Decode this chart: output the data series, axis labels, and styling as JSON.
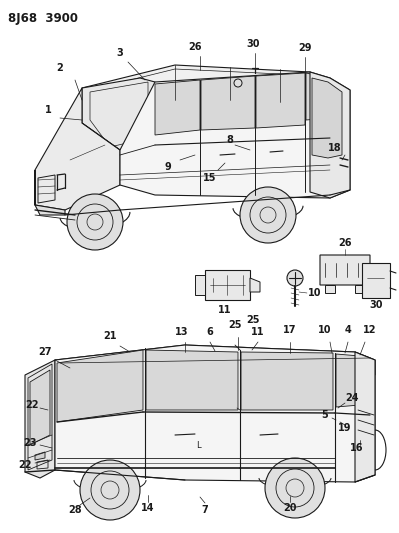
{
  "title": "8J68  3900",
  "bg": "#ffffff",
  "lc": "#1a1a1a",
  "figsize": [
    3.99,
    5.33
  ],
  "dpi": 100
}
